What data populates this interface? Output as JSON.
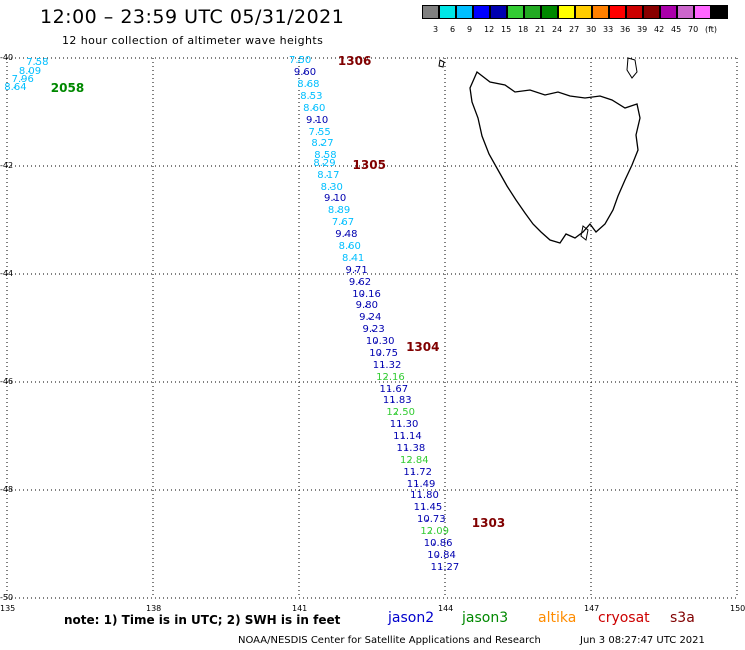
{
  "title": "12:00 – 23:59 UTC 05/31/2021",
  "subtitle": "12 hour collection of altimeter wave heights",
  "colorbar": {
    "colors": [
      "#808080",
      "#00e6e6",
      "#00bfff",
      "#0000ff",
      "#0000b0",
      "#33cc33",
      "#22aa22",
      "#008800",
      "#ffff00",
      "#ffcc00",
      "#ff8000",
      "#ff0000",
      "#cc0000",
      "#880000",
      "#aa00aa",
      "#cc66cc",
      "#ff66ff",
      "#000000"
    ],
    "labels": [
      "3",
      "6",
      "9",
      "12",
      "15",
      "18",
      "21",
      "24",
      "27",
      "30",
      "33",
      "36",
      "39",
      "42",
      "45",
      "70",
      "(ft)"
    ]
  },
  "axes": {
    "lon_ticks": [
      "135",
      "138",
      "141",
      "144",
      "147",
      "150"
    ],
    "lat_ticks": [
      "-40",
      "-42",
      "-44",
      "-46",
      "-48",
      "-50"
    ]
  },
  "chart_data": {
    "type": "scatter",
    "xlim": [
      135,
      150
    ],
    "ylim": [
      -50,
      -40
    ],
    "x_ticks": [
      135,
      138,
      141,
      144,
      147,
      150
    ],
    "y_ticks": [
      -40,
      -42,
      -44,
      -46,
      -48,
      -50
    ],
    "grid": true,
    "points": [
      {
        "lon": 135.6,
        "lat": -40.1,
        "v": "7.58",
        "color": "#00bfff"
      },
      {
        "lon": 135.45,
        "lat": -40.25,
        "v": "8.09",
        "color": "#00bfff"
      },
      {
        "lon": 135.3,
        "lat": -40.4,
        "v": "7.96",
        "color": "#00bfff"
      },
      {
        "lon": 135.15,
        "lat": -40.55,
        "v": "8.64",
        "color": "#00bfff"
      },
      {
        "lon": 141.0,
        "lat": -40.05,
        "v": "7.50",
        "color": "#00bfff"
      },
      {
        "lon": 141.1,
        "lat": -40.28,
        "v": "9.60",
        "color": "#0000b0"
      },
      {
        "lon": 141.17,
        "lat": -40.5,
        "v": "8.68",
        "color": "#00bfff"
      },
      {
        "lon": 141.23,
        "lat": -40.72,
        "v": "8.53",
        "color": "#00bfff"
      },
      {
        "lon": 141.29,
        "lat": -40.94,
        "v": "8.60",
        "color": "#00bfff"
      },
      {
        "lon": 141.35,
        "lat": -41.16,
        "v": "9.10",
        "color": "#0000b0"
      },
      {
        "lon": 141.4,
        "lat": -41.38,
        "v": "7.55",
        "color": "#00bfff"
      },
      {
        "lon": 141.46,
        "lat": -41.6,
        "v": "8.27",
        "color": "#00bfff"
      },
      {
        "lon": 141.52,
        "lat": -41.82,
        "v": "8.58",
        "color": "#00bfff"
      },
      {
        "lon": 141.5,
        "lat": -41.96,
        "v": "8.29",
        "color": "#00bfff"
      },
      {
        "lon": 141.58,
        "lat": -42.18,
        "v": "8.17",
        "color": "#00bfff"
      },
      {
        "lon": 141.65,
        "lat": -42.4,
        "v": "8.30",
        "color": "#00bfff"
      },
      {
        "lon": 141.72,
        "lat": -42.62,
        "v": "9.10",
        "color": "#0000b0"
      },
      {
        "lon": 141.8,
        "lat": -42.84,
        "v": "8.89",
        "color": "#00bfff"
      },
      {
        "lon": 141.88,
        "lat": -43.06,
        "v": "7.67",
        "color": "#00bfff"
      },
      {
        "lon": 141.95,
        "lat": -43.28,
        "v": "9.48",
        "color": "#0000b0"
      },
      {
        "lon": 142.02,
        "lat": -43.5,
        "v": "8.60",
        "color": "#00bfff"
      },
      {
        "lon": 142.09,
        "lat": -43.72,
        "v": "8.41",
        "color": "#00bfff"
      },
      {
        "lon": 142.16,
        "lat": -43.94,
        "v": "9.71",
        "color": "#0000b0"
      },
      {
        "lon": 142.23,
        "lat": -44.16,
        "v": "9.62",
        "color": "#0000b0"
      },
      {
        "lon": 142.3,
        "lat": -44.38,
        "v": "10.16",
        "color": "#0000b0"
      },
      {
        "lon": 142.37,
        "lat": -44.6,
        "v": "9.80",
        "color": "#0000b0"
      },
      {
        "lon": 142.44,
        "lat": -44.82,
        "v": "9.24",
        "color": "#0000b0"
      },
      {
        "lon": 142.51,
        "lat": -45.04,
        "v": "9.23",
        "color": "#0000b0"
      },
      {
        "lon": 142.58,
        "lat": -45.26,
        "v": "10.30",
        "color": "#0000b0"
      },
      {
        "lon": 142.65,
        "lat": -45.48,
        "v": "10.75",
        "color": "#0000b0"
      },
      {
        "lon": 142.72,
        "lat": -45.7,
        "v": "11.32",
        "color": "#0000b0"
      },
      {
        "lon": 142.79,
        "lat": -45.92,
        "v": "12.16",
        "color": "#33cc33"
      },
      {
        "lon": 142.86,
        "lat": -46.14,
        "v": "11.67",
        "color": "#0000b0"
      },
      {
        "lon": 142.93,
        "lat": -46.36,
        "v": "11.83",
        "color": "#0000b0"
      },
      {
        "lon": 143.0,
        "lat": -46.58,
        "v": "12.50",
        "color": "#33cc33"
      },
      {
        "lon": 143.07,
        "lat": -46.8,
        "v": "11.30",
        "color": "#0000b0"
      },
      {
        "lon": 143.14,
        "lat": -47.02,
        "v": "11.14",
        "color": "#0000b0"
      },
      {
        "lon": 143.21,
        "lat": -47.24,
        "v": "11.38",
        "color": "#0000b0"
      },
      {
        "lon": 143.28,
        "lat": -47.46,
        "v": "12.84",
        "color": "#33cc33"
      },
      {
        "lon": 143.35,
        "lat": -47.68,
        "v": "11.72",
        "color": "#0000b0"
      },
      {
        "lon": 143.42,
        "lat": -47.9,
        "v": "11.49",
        "color": "#0000b0"
      },
      {
        "lon": 143.49,
        "lat": -48.12,
        "v": "11.80",
        "color": "#0000b0"
      },
      {
        "lon": 143.56,
        "lat": -48.34,
        "v": "11.45",
        "color": "#0000b0"
      },
      {
        "lon": 143.63,
        "lat": -48.56,
        "v": "10.73",
        "color": "#0000b0"
      },
      {
        "lon": 143.7,
        "lat": -48.78,
        "v": "12.09",
        "color": "#33cc33"
      },
      {
        "lon": 143.77,
        "lat": -49.0,
        "v": "10.86",
        "color": "#0000b0"
      },
      {
        "lon": 143.84,
        "lat": -49.22,
        "v": "10.84",
        "color": "#0000b0"
      },
      {
        "lon": 143.91,
        "lat": -49.44,
        "v": "11.27",
        "color": "#0000b0"
      }
    ],
    "rev_labels": [
      {
        "lon": 135.9,
        "lat": -40.55,
        "text": "2058",
        "color": "#008800"
      },
      {
        "lon": 141.8,
        "lat": -40.05,
        "text": "1306",
        "color": "#800000"
      },
      {
        "lon": 142.1,
        "lat": -41.98,
        "text": "1305",
        "color": "#800000"
      },
      {
        "lon": 143.2,
        "lat": -45.36,
        "text": "1304",
        "color": "#800000"
      },
      {
        "lon": 144.55,
        "lat": -48.62,
        "text": "1303",
        "color": "#800000"
      }
    ]
  },
  "note": "note: 1) Time is in UTC; 2) SWH is in feet",
  "satellites": [
    {
      "name": "jason2",
      "color": "#0000cc"
    },
    {
      "name": "jason3",
      "color": "#008800"
    },
    {
      "name": "altika",
      "color": "#ff8c00"
    },
    {
      "name": "cryosat",
      "color": "#cc0000"
    },
    {
      "name": "s3a",
      "color": "#800000"
    }
  ],
  "footer_left": "NOAA/NESDIS Center for Satellite Applications and Research",
  "footer_right": "Jun 3 08:27:47 UTC 2021"
}
